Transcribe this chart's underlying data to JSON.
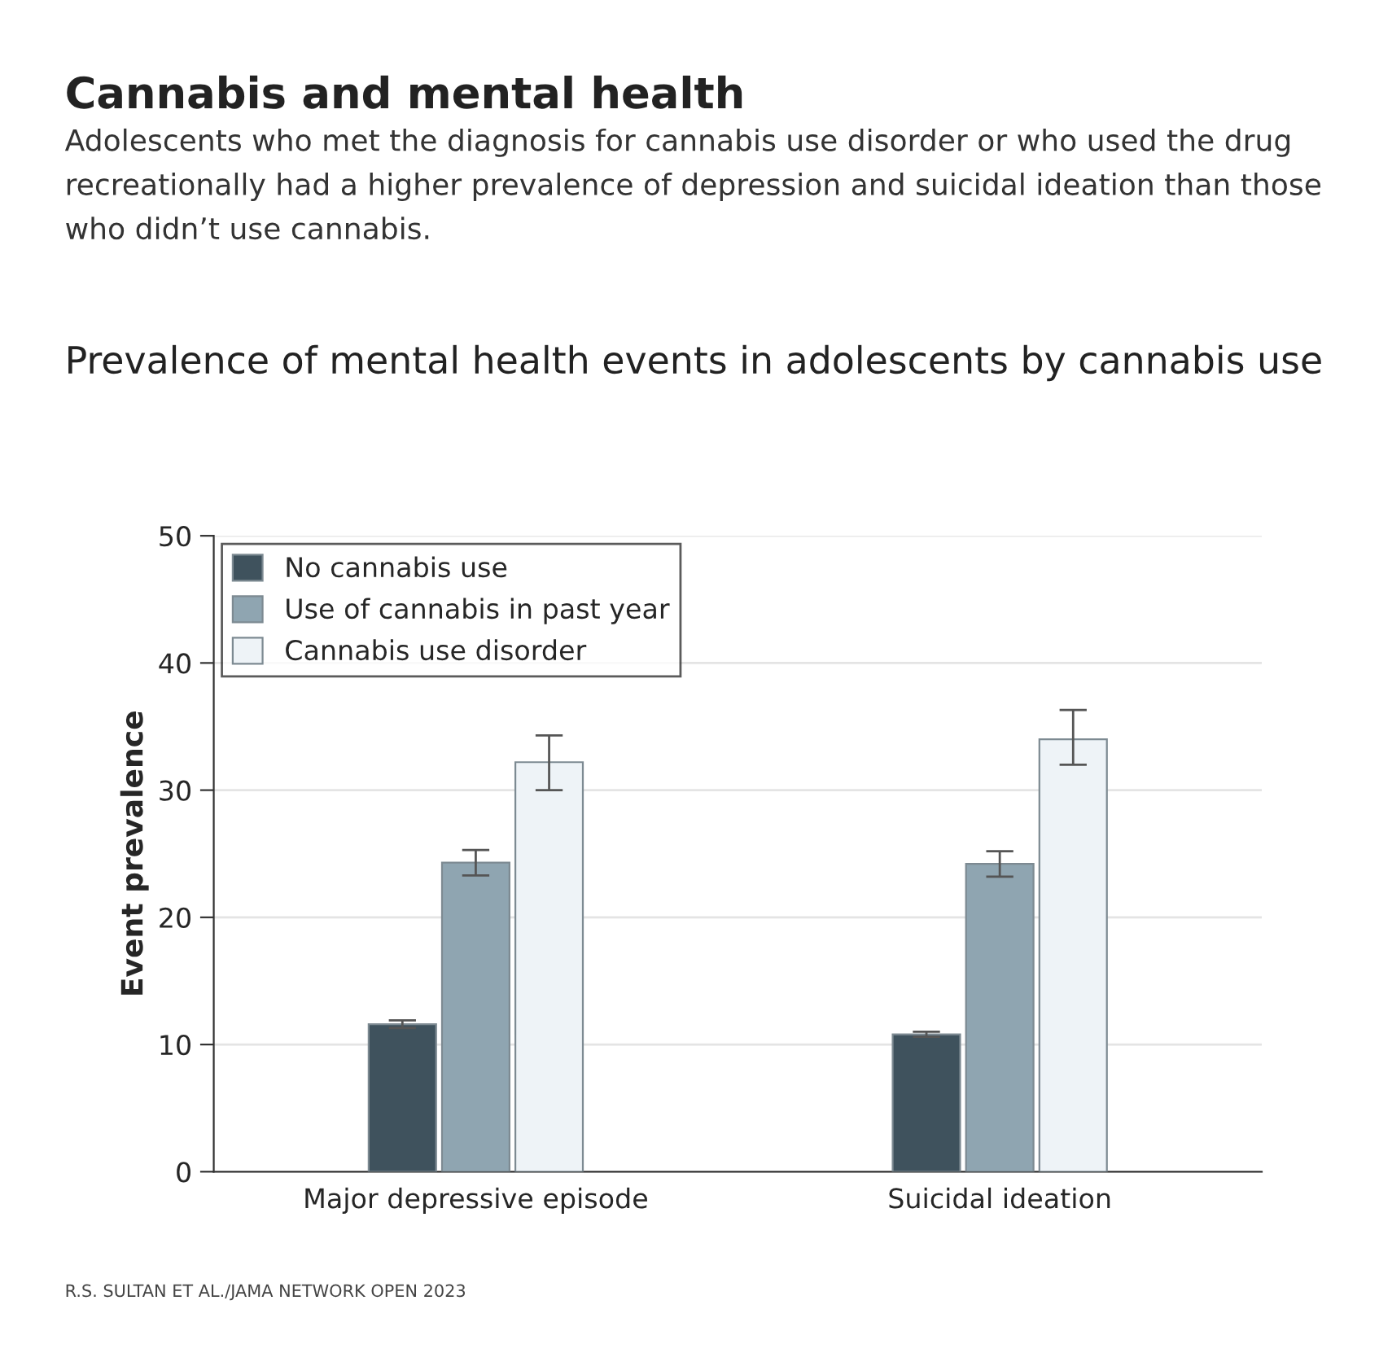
{
  "chart_data": {
    "type": "bar",
    "title": "Cannabis and mental health",
    "subtitle": "Adolescents who met the diagnosis for cannabis use disorder or who used the drug recreationally had a higher prevalence of depression and suicidal ideation than those who didn’t use cannabis.",
    "annotations": [
      "Prevalence of mental health events in adolescents by cannabis use",
      "R.S. SULTAN ET AL./JAMA NETWORK OPEN 2023"
    ],
    "ylabel": "Event prevalence",
    "categories": [
      "Major depressive episode",
      "Suicidal ideation"
    ],
    "series": [
      {
        "name": "No cannabis use",
        "color": "#3f525d",
        "values": [
          11.6,
          10.8
        ],
        "errors": [
          [
            11.3,
            11.9
          ],
          [
            10.6,
            11.0
          ]
        ]
      },
      {
        "name": "Use of cannabis in past year",
        "color": "#8fa5b1",
        "values": [
          24.3,
          24.2
        ],
        "errors": [
          [
            23.3,
            25.3
          ],
          [
            23.2,
            25.2
          ]
        ]
      },
      {
        "name": "Cannabis use disorder",
        "color": "#eef3f7",
        "values": [
          32.2,
          34.0
        ],
        "errors": [
          [
            30.0,
            34.3
          ],
          [
            32.0,
            36.3
          ]
        ]
      }
    ],
    "ylim": [
      0,
      50
    ],
    "yticks": [
      0,
      10,
      20,
      30,
      40,
      50
    ],
    "grid": "y",
    "legend": "top left"
  }
}
